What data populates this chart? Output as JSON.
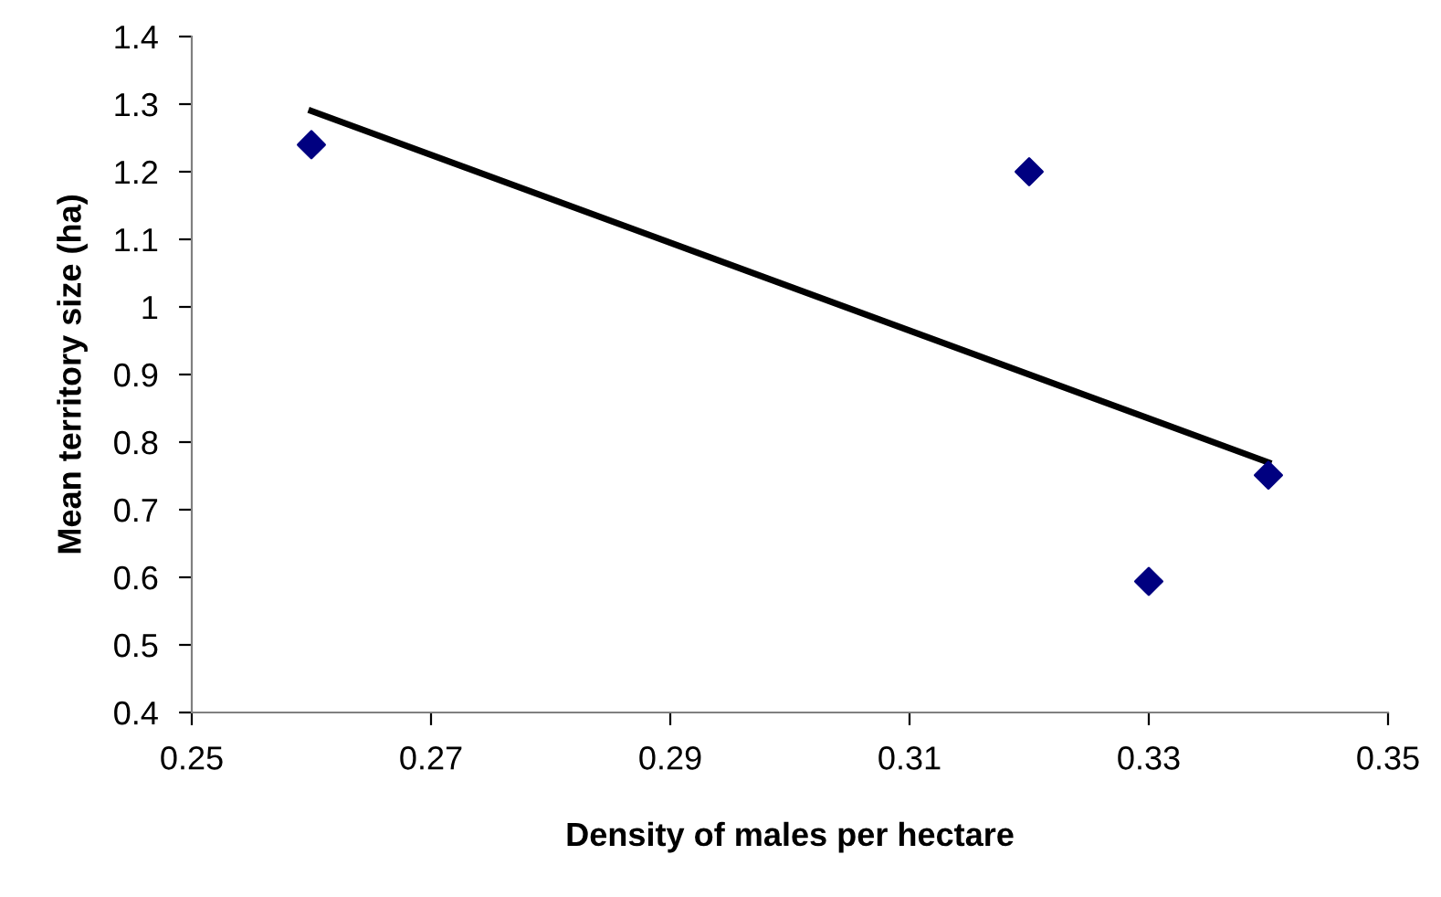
{
  "chart_data": {
    "type": "scatter",
    "xlabel": "Density of males per hectare",
    "ylabel": "Mean territory size (ha)",
    "x": [
      0.26,
      0.32,
      0.33,
      0.34
    ],
    "series": [
      {
        "color": "#000080",
        "marker": "diamond",
        "values": [
          1.24,
          1.2,
          0.594,
          0.751
        ]
      },
      {
        "type": "line",
        "color": "#000000",
        "marker": "none",
        "line_style": "solid",
        "x": [
          0.26,
          0.34
        ],
        "values": [
          1.29,
          0.77
        ]
      }
    ],
    "xlim": [
      0.25,
      0.35
    ],
    "xticks": [
      0.25,
      0.27,
      0.29,
      0.31,
      0.33,
      0.35
    ],
    "ylim": [
      0.4,
      1.4
    ],
    "yticks": [
      0.4,
      0.5,
      0.6,
      0.7,
      0.8,
      0.9,
      1,
      1.1,
      1.2,
      1.3,
      1.4
    ],
    "grid": false,
    "legend": false
  }
}
